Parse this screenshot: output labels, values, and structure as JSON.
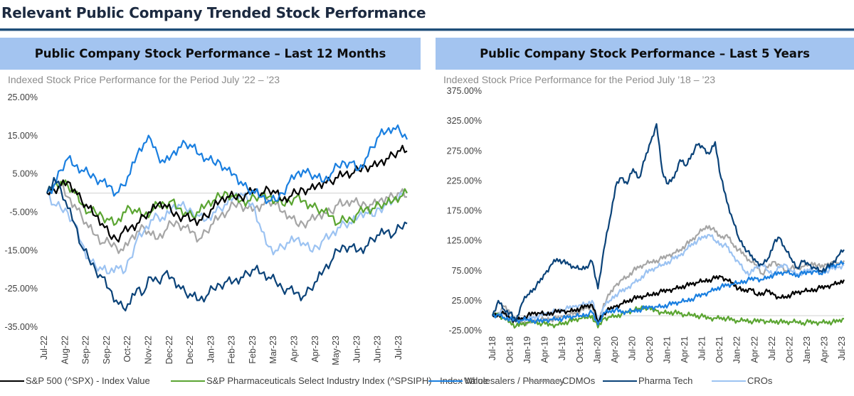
{
  "page": {
    "title": "Relevant Public Company Trended Stock Performance"
  },
  "colors": {
    "sp500": "#000000",
    "spsiph": "#5ba532",
    "wholesalers": "#1a7fe0",
    "cdmos": "#a6a6a6",
    "pharma_tech": "#0b4379",
    "cros": "#9cc3f2",
    "header_bar": "#a3c4f0",
    "title_rule": "#1f4e79",
    "zero_line": "#d0d0d0"
  },
  "legend": [
    {
      "key": "sp500",
      "label": "S&P 500 (^SPX) - Index Value"
    },
    {
      "key": "spsiph",
      "label": "S&P Pharmaceuticals Select Industry Index (^SPSIPH) - Index Value"
    },
    {
      "key": "wholesalers",
      "label": "Wholesalers / Pharmacy"
    },
    {
      "key": "cdmos",
      "label": "CDMOs"
    },
    {
      "key": "pharma_tech",
      "label": "Pharma Tech"
    },
    {
      "key": "cros",
      "label": "CROs"
    }
  ],
  "chart_data": [
    {
      "type": "line",
      "id": "last-12-months",
      "header": "Public Company Stock Performance – Last 12 Months",
      "title": "Indexed Stock Price Performance for the Period July ’22 – ’23",
      "xlabel": "",
      "ylabel": "",
      "ylim": [
        -35,
        25
      ],
      "yticks": [
        25,
        15,
        5,
        -5,
        -15,
        -25,
        -35
      ],
      "ytick_labels": [
        "25.00%",
        "15.00%",
        "5.00%",
        "-5.00%",
        "-15.00%",
        "-25.00%",
        "-35.00%"
      ],
      "xtick_labels": [
        "Jul-22",
        "Aug-22",
        "Sep-22",
        "Sep-22",
        "Oct-22",
        "Nov-22",
        "Dec-22",
        "Dec-22",
        "Jan-23",
        "Feb-23",
        "Feb-23",
        "Mar-23",
        "Apr-23",
        "Apr-23",
        "May-23",
        "Jun-23",
        "Jun-23",
        "Jul-23"
      ],
      "zero_line": true,
      "grid": false,
      "legend_position": "bottom",
      "x_points": 53,
      "series": [
        {
          "key": "sp500",
          "name": "S&P 500 (^SPX) - Index Value",
          "values": [
            0,
            1,
            2,
            3,
            1,
            -2,
            -4,
            -6,
            -8,
            -11,
            -12,
            -10,
            -9,
            -8,
            -6,
            -5,
            -3,
            -3,
            -5,
            -6,
            -6,
            -7,
            -7,
            -6,
            -4,
            -2,
            -1,
            -1,
            -1,
            0,
            1,
            0,
            1,
            0,
            -2,
            -1,
            0,
            1,
            1,
            2,
            3,
            3,
            4,
            5,
            5,
            6,
            7,
            7,
            8,
            9,
            10,
            11,
            11
          ]
        },
        {
          "key": "spsiph",
          "name": "S&P Pharmaceuticals Select Industry Index (^SPSIPH) - Index Value",
          "values": [
            0,
            2,
            3,
            2,
            0,
            -3,
            -5,
            -5,
            -6,
            -7,
            -8,
            -5,
            -4,
            -5,
            -6,
            -5,
            -3,
            -3,
            -2,
            -4,
            -5,
            -6,
            -5,
            -3,
            -2,
            -1,
            0,
            -1,
            -2,
            -2,
            -1,
            -1,
            -1,
            -2,
            -3,
            -2,
            -1,
            -2,
            -3,
            -4,
            -5,
            -6,
            -8,
            -7,
            -7,
            -5,
            -4,
            -4,
            -3,
            -3,
            -2,
            -1,
            0
          ]
        },
        {
          "key": "wholesalers",
          "name": "Wholesalers / Pharmacy",
          "values": [
            0,
            2,
            6,
            9,
            7,
            6,
            5,
            4,
            3,
            2,
            0,
            2,
            5,
            10,
            13,
            14,
            10,
            8,
            10,
            12,
            13,
            12,
            10,
            9,
            8,
            8,
            6,
            5,
            3,
            1,
            0,
            -1,
            -2,
            -2,
            0,
            3,
            5,
            6,
            5,
            4,
            3,
            5,
            7,
            8,
            8,
            6,
            9,
            12,
            15,
            16,
            17,
            16,
            14
          ]
        },
        {
          "key": "cdmos",
          "name": "CDMOs",
          "values": [
            0,
            1,
            2,
            -1,
            -3,
            -6,
            -9,
            -11,
            -13,
            -13,
            -14,
            -15,
            -12,
            -10,
            -9,
            -11,
            -12,
            -10,
            -8,
            -8,
            -9,
            -10,
            -12,
            -10,
            -8,
            -6,
            -5,
            -3,
            -3,
            -4,
            -4,
            -3,
            -2,
            -3,
            -5,
            -6,
            -8,
            -8,
            -7,
            -6,
            -5,
            -5,
            -3,
            -3,
            -2,
            -3,
            -3,
            -3,
            -2,
            -1,
            -1,
            0,
            -1
          ]
        },
        {
          "key": "pharma_tech",
          "name": "Pharma Tech",
          "values": [
            0,
            4,
            1,
            -4,
            -8,
            -14,
            -17,
            -20,
            -22,
            -25,
            -28,
            -30,
            -29,
            -25,
            -26,
            -22,
            -23,
            -21,
            -22,
            -24,
            -26,
            -27,
            -28,
            -27,
            -25,
            -24,
            -23,
            -23,
            -22,
            -21,
            -20,
            -21,
            -22,
            -23,
            -25,
            -25,
            -26,
            -27,
            -25,
            -23,
            -20,
            -18,
            -15,
            -14,
            -14,
            -15,
            -14,
            -12,
            -11,
            -10,
            -11,
            -9,
            -8
          ]
        },
        {
          "key": "cros",
          "name": "CROs",
          "values": [
            0,
            -3,
            -4,
            -5,
            -8,
            -13,
            -17,
            -19,
            -20,
            -21,
            -19,
            -21,
            -17,
            -12,
            -10,
            -7,
            -6,
            -7,
            -4,
            -3,
            -4,
            -5,
            -6,
            -7,
            -5,
            -4,
            -3,
            -1,
            0,
            -2,
            -4,
            -10,
            -14,
            -15,
            -14,
            -13,
            -12,
            -13,
            -15,
            -14,
            -12,
            -11,
            -9,
            -8,
            -8,
            -6,
            -5,
            -6,
            -4,
            -3,
            -2,
            0,
            0
          ]
        }
      ]
    },
    {
      "type": "line",
      "id": "last-5-years",
      "header": "Public Company Stock Performance – Last 5 Years",
      "title": "Indexed Stock Price Performance for the Period July ’18 – ’23",
      "xlabel": "",
      "ylabel": "",
      "ylim": [
        -25,
        375
      ],
      "yticks": [
        375,
        325,
        275,
        225,
        175,
        125,
        75,
        25,
        -25
      ],
      "ytick_labels": [
        "375.00%",
        "325.00%",
        "275.00%",
        "225.00%",
        "175.00%",
        "125.00%",
        "75.00%",
        "25.00%",
        "-25.00%"
      ],
      "xtick_labels": [
        "Jul-18",
        "Oct-18",
        "Jan-19",
        "Apr-19",
        "Jul-19",
        "Oct-19",
        "Jan-20",
        "Apr-20",
        "Jul-20",
        "Oct-20",
        "Jan-21",
        "Apr-21",
        "Jul-21",
        "Oct-21",
        "Jan-22",
        "Apr-22",
        "Jul-22",
        "Oct-22",
        "Jan-23",
        "Apr-23",
        "Jul-23"
      ],
      "zero_line": true,
      "grid": false,
      "legend_position": "bottom",
      "x_points": 61,
      "series": [
        {
          "key": "sp500",
          "name": "S&P 500 (^SPX) - Index Value",
          "values": [
            0,
            2,
            3,
            -5,
            -8,
            -4,
            0,
            3,
            4,
            2,
            5,
            6,
            8,
            7,
            10,
            12,
            15,
            18,
            -10,
            5,
            10,
            15,
            20,
            25,
            28,
            30,
            32,
            35,
            38,
            40,
            42,
            45,
            48,
            50,
            52,
            55,
            58,
            60,
            62,
            65,
            60,
            55,
            45,
            40,
            45,
            35,
            38,
            40,
            35,
            30,
            32,
            35,
            38,
            40,
            42,
            44,
            46,
            48,
            52,
            55,
            60
          ]
        },
        {
          "key": "spsiph",
          "name": "S&P Pharmaceuticals Select Industry Index (^SPSIPH) - Index Value",
          "values": [
            0,
            2,
            -5,
            -10,
            -18,
            -15,
            -12,
            -10,
            -12,
            -14,
            -16,
            -15,
            -12,
            -10,
            -8,
            -5,
            -3,
            0,
            -20,
            -5,
            -2,
            0,
            2,
            5,
            8,
            12,
            15,
            10,
            8,
            5,
            6,
            5,
            3,
            0,
            2,
            0,
            -2,
            -5,
            -4,
            -3,
            -5,
            -8,
            -10,
            -7,
            -9,
            -10,
            -8,
            -10,
            -9,
            -10,
            -12,
            -11,
            -10,
            -12,
            -11,
            -12,
            -11,
            -10,
            -11,
            -10,
            -5
          ]
        },
        {
          "key": "wholesalers",
          "name": "Wholesalers / Pharmacy",
          "values": [
            0,
            2,
            -3,
            -5,
            -10,
            -8,
            -6,
            -8,
            -10,
            -8,
            -6,
            -5,
            -5,
            -3,
            -2,
            0,
            2,
            5,
            -15,
            5,
            8,
            10,
            5,
            6,
            8,
            10,
            12,
            14,
            15,
            16,
            18,
            20,
            22,
            25,
            28,
            32,
            35,
            40,
            45,
            48,
            50,
            52,
            55,
            58,
            60,
            62,
            60,
            65,
            68,
            70,
            72,
            70,
            68,
            70,
            72,
            75,
            70,
            78,
            82,
            85,
            88
          ]
        },
        {
          "key": "cdmos",
          "name": "CDMOs",
          "values": [
            0,
            5,
            15,
            5,
            -5,
            -10,
            -12,
            -10,
            -8,
            -5,
            -6,
            -5,
            -2,
            2,
            5,
            8,
            12,
            15,
            -15,
            20,
            35,
            50,
            60,
            65,
            75,
            80,
            85,
            90,
            92,
            95,
            100,
            105,
            110,
            118,
            125,
            135,
            145,
            150,
            140,
            130,
            135,
            120,
            110,
            100,
            90,
            85,
            70,
            80,
            90,
            85,
            75,
            80,
            78,
            82,
            85,
            88,
            80,
            85,
            90,
            88,
            92
          ]
        },
        {
          "key": "pharma_tech",
          "name": "Pharma Tech",
          "values": [
            0,
            25,
            10,
            5,
            -10,
            20,
            35,
            45,
            55,
            70,
            85,
            95,
            90,
            85,
            80,
            78,
            82,
            90,
            45,
            110,
            160,
            215,
            230,
            220,
            245,
            230,
            260,
            290,
            320,
            240,
            220,
            230,
            260,
            250,
            270,
            285,
            280,
            270,
            290,
            230,
            190,
            160,
            130,
            115,
            100,
            90,
            85,
            95,
            120,
            130,
            110,
            95,
            80,
            90,
            85,
            80,
            75,
            80,
            85,
            100,
            110
          ]
        },
        {
          "key": "cros",
          "name": "CROs",
          "values": [
            0,
            3,
            5,
            -5,
            -8,
            -5,
            -3,
            -2,
            0,
            2,
            5,
            8,
            10,
            12,
            15,
            18,
            20,
            25,
            -10,
            15,
            25,
            35,
            40,
            45,
            55,
            60,
            70,
            75,
            80,
            85,
            90,
            95,
            100,
            110,
            120,
            125,
            130,
            135,
            125,
            120,
            115,
            100,
            90,
            75,
            70,
            80,
            85,
            75,
            70,
            80,
            85,
            75,
            70,
            72,
            75,
            80,
            72,
            75,
            78,
            80,
            85
          ]
        }
      ]
    }
  ]
}
